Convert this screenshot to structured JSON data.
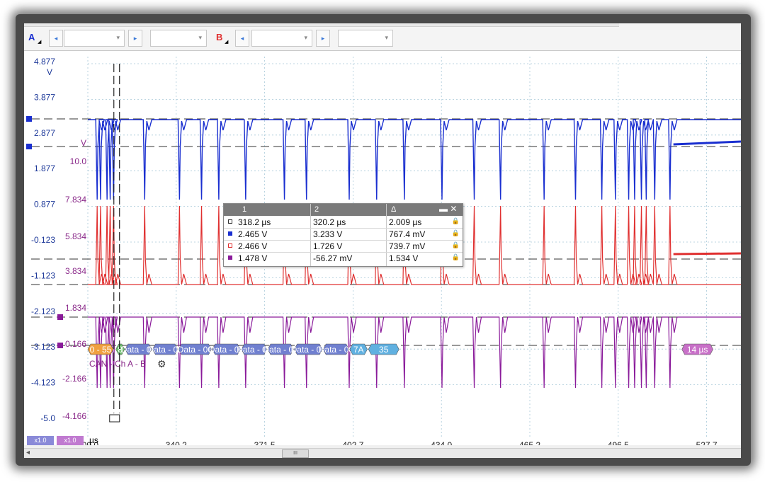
{
  "toolbar": {
    "channel_a": "A",
    "channel_b": "B",
    "prev_glyph": "◂",
    "next_glyph": "▸",
    "chevron_glyph": "▾",
    "corner_glyph": "◢"
  },
  "colors": {
    "blue": "#1a2fd0",
    "red": "#e03030",
    "purple": "#8a1a9a",
    "axis_text": "#1f3a9a",
    "purple_text": "#8a2a8a",
    "grid": "#a8c8d8"
  },
  "chart_data": {
    "type": "line",
    "x_ticks": [
      "309.0",
      "340.2",
      "371.5",
      "402.7",
      "434.0",
      "465.2",
      "496.5",
      "527.7"
    ],
    "x_unit": "µs",
    "y_left_ticks": [
      "4.877",
      "3.877",
      "2.877",
      "1.877",
      "0.877",
      "-0.123",
      "-1.123",
      "-2.123",
      "-3.123",
      "-4.123",
      "-5.0"
    ],
    "y_left_unit": "V",
    "y_right_ticks": [
      "10.0",
      "7.834",
      "5.834",
      "3.834",
      "1.834",
      "0.166",
      "-2.166",
      "-4.166"
    ],
    "y_right_unit": "V",
    "series": [
      {
        "color": "#1a2fd0",
        "levels": [
          2.465,
          3.233
        ],
        "edges": [
          312.3,
          313.5,
          315.8,
          316.9,
          318.1,
          329.1,
          341.4,
          349.2,
          355.3,
          364.8,
          378.5,
          386.3,
          401.4,
          411.1,
          420.9,
          434.2,
          445.6,
          454.9,
          470.3,
          481.4,
          490.7,
          495.5,
          500.2,
          502.3,
          504.7,
          506.4,
          509.4,
          514.8
        ]
      },
      {
        "color": "#e03030",
        "levels": [
          2.466,
          1.726
        ]
      },
      {
        "color": "#8a1a9a",
        "levels": [
          1.478,
          -56.27
        ]
      }
    ],
    "decoder": {
      "label": "CAN - Ch A - B",
      "frames": [
        "0 - 55",
        "8",
        "Data - 00",
        "Data - 00",
        "Data - 00",
        "Data - 00",
        "Data - 00",
        "Data - 00",
        "Data - 00",
        "Data - 00",
        "7A",
        "35",
        "14 µs"
      ]
    },
    "cursors": {
      "headers": [
        "1",
        "2",
        "Δ"
      ],
      "rows": [
        {
          "color": "#ffffff",
          "v1": "318.2 µs",
          "v2": "320.2 µs",
          "delta": "2.009 µs"
        },
        {
          "color": "#1a2fd0",
          "v1": "2.465 V",
          "v2": "3.233 V",
          "delta": "767.4 mV"
        },
        {
          "color": "#e03030",
          "v1": "2.466 V",
          "v2": "1.726 V",
          "delta": "739.7 mV"
        },
        {
          "color": "#8a1a9a",
          "v1": "1.478 V",
          "v2": "-56.27 mV",
          "delta": "1.534 V"
        }
      ],
      "close_glyph": "▬ ✕",
      "lock_glyph": "🔒"
    },
    "zoom": [
      "x1.0",
      "x1.0"
    ],
    "grid": true
  }
}
